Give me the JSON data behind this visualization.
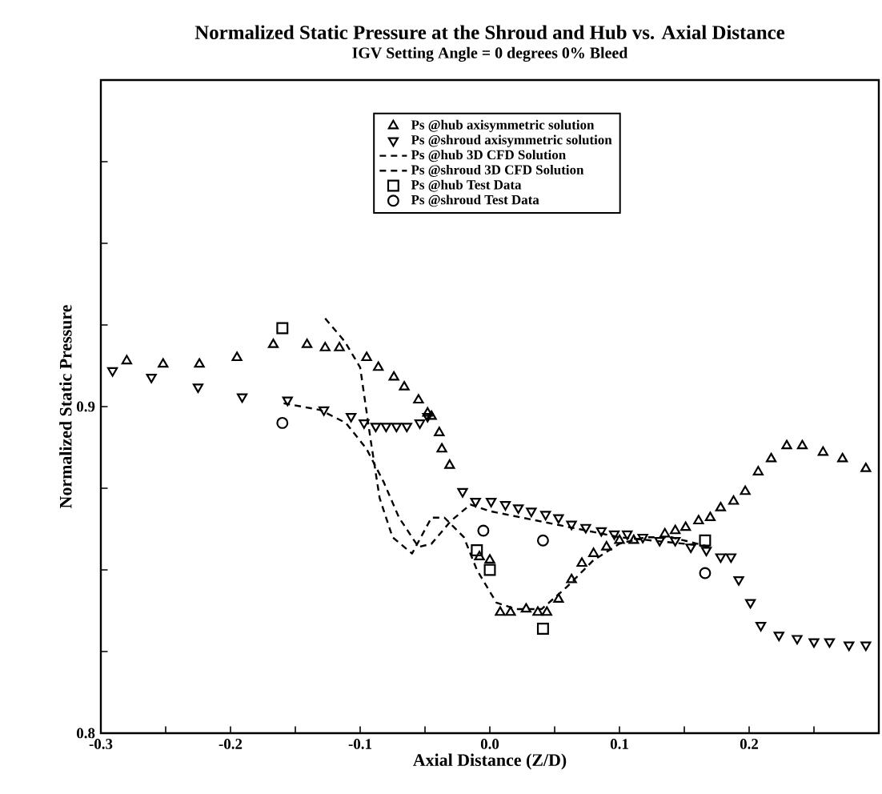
{
  "chart_data": {
    "type": "scatter",
    "title": "Normalized Static Pressure at the Shroud and Hub vs. Axial Distance",
    "subtitle": "IGV Setting Angle = 0 degrees 0% Bleed",
    "xlabel": "Axial Distance (Z/D)",
    "ylabel": "Normalized Static Pressure",
    "xlim": [
      -0.3,
      0.3
    ],
    "ylim": [
      0.8,
      1.0
    ],
    "xticks": [
      -0.3,
      {
        "value": -0.25,
        "label": null
      },
      -0.2,
      {
        "value": -0.15,
        "label": null
      },
      -0.1,
      {
        "value": -0.05,
        "label": null
      },
      {
        "value": 0,
        "label": "0.0"
      },
      {
        "value": 0.05,
        "label": null
      },
      0.1,
      {
        "value": 0.15,
        "label": null
      },
      0.2,
      {
        "value": 0.25,
        "label": null
      }
    ],
    "yticks": [
      0.8,
      {
        "value": 0.825,
        "label": null
      },
      {
        "value": 0.85,
        "label": null
      },
      {
        "value": 0.875,
        "label": null
      },
      0.9,
      {
        "value": 0.925,
        "label": null
      },
      {
        "value": 0.95,
        "label": null
      },
      {
        "value": 0.975,
        "label": null
      }
    ],
    "legend": "top right",
    "series": [
      {
        "name": "Ps @hub axisymmetric solution",
        "marker": "triangle",
        "color": "#000000",
        "x": [
          -0.28,
          -0.252,
          -0.224,
          -0.195,
          -0.167,
          -0.141,
          -0.127,
          -0.116,
          -0.095,
          -0.086,
          -0.074,
          -0.066,
          -0.055,
          -0.048,
          -0.045,
          -0.039,
          -0.037,
          -0.031,
          -0.008,
          0.0,
          0.008,
          0.016,
          0.028,
          0.037,
          0.044,
          0.053,
          0.063,
          0.071,
          0.08,
          0.09,
          0.1,
          0.111,
          0.135,
          0.143,
          0.151,
          0.161,
          0.17,
          0.178,
          0.188,
          0.197,
          0.207,
          0.217,
          0.229,
          0.241,
          0.257,
          0.272,
          0.29
        ],
        "values": [
          0.914,
          0.913,
          0.913,
          0.915,
          0.919,
          0.919,
          0.918,
          0.918,
          0.915,
          0.912,
          0.909,
          0.906,
          0.902,
          0.898,
          0.897,
          0.892,
          0.887,
          0.882,
          0.854,
          0.853,
          0.837,
          0.837,
          0.838,
          0.837,
          0.837,
          0.841,
          0.847,
          0.852,
          0.855,
          0.857,
          0.859,
          0.859,
          0.861,
          0.862,
          0.863,
          0.865,
          0.866,
          0.869,
          0.871,
          0.874,
          0.88,
          0.884,
          0.888,
          0.888,
          0.886,
          0.884,
          0.881
        ]
      },
      {
        "name": "Ps @shroud axisymmetric solution",
        "marker": "triangle-down",
        "color": "#000000",
        "x": [
          -0.291,
          -0.261,
          -0.225,
          -0.191,
          -0.156,
          -0.128,
          -0.107,
          -0.097,
          -0.088,
          -0.08,
          -0.072,
          -0.064,
          -0.054,
          -0.048,
          -0.021,
          -0.011,
          0.001,
          0.012,
          0.022,
          0.032,
          0.043,
          0.053,
          0.063,
          0.074,
          0.086,
          0.096,
          0.106,
          0.118,
          0.131,
          0.143,
          0.155,
          0.167,
          0.178,
          0.186,
          0.192,
          0.201,
          0.209,
          0.223,
          0.237,
          0.25,
          0.262,
          0.277,
          0.29
        ],
        "values": [
          0.911,
          0.909,
          0.906,
          0.903,
          0.902,
          0.899,
          0.897,
          0.895,
          0.894,
          0.894,
          0.894,
          0.894,
          0.895,
          0.897,
          0.874,
          0.871,
          0.871,
          0.87,
          0.869,
          0.868,
          0.867,
          0.866,
          0.864,
          0.863,
          0.862,
          0.861,
          0.861,
          0.86,
          0.859,
          0.859,
          0.857,
          0.856,
          0.854,
          0.854,
          0.847,
          0.84,
          0.833,
          0.83,
          0.829,
          0.828,
          0.828,
          0.827,
          0.827
        ]
      },
      {
        "name": "Ps @hub 3D CFD Solution",
        "type": "line",
        "line_style": "dashed",
        "color": "#000000",
        "x": [
          -0.127,
          -0.112,
          -0.1,
          -0.092,
          -0.085,
          -0.075,
          -0.06,
          -0.045,
          -0.035,
          -0.02,
          -0.01,
          0.005,
          0.02,
          0.04,
          0.06,
          0.08,
          0.1,
          0.12,
          0.14,
          0.16,
          0.17
        ],
        "values": [
          0.927,
          0.92,
          0.912,
          0.89,
          0.872,
          0.86,
          0.855,
          0.866,
          0.866,
          0.86,
          0.85,
          0.84,
          0.838,
          0.838,
          0.845,
          0.853,
          0.858,
          0.86,
          0.86,
          0.858,
          0.857
        ]
      },
      {
        "name": "Ps @shroud 3D CFD Solution",
        "type": "line",
        "line_style": "dashed",
        "color": "#000000",
        "x": [
          -0.159,
          -0.131,
          -0.111,
          -0.095,
          -0.082,
          -0.07,
          -0.055,
          -0.045,
          -0.03,
          -0.015,
          0.0,
          0.05,
          0.1,
          0.15,
          0.17
        ],
        "values": [
          0.901,
          0.899,
          0.895,
          0.887,
          0.877,
          0.866,
          0.857,
          0.858,
          0.865,
          0.87,
          0.868,
          0.864,
          0.86,
          0.858,
          0.857
        ]
      },
      {
        "name": "Ps  @hub Test Data",
        "marker": "square",
        "color": "#000000",
        "x": [
          -0.16,
          -0.01,
          0.0,
          0.041,
          0.166
        ],
        "values": [
          0.924,
          0.856,
          0.85,
          0.832,
          0.859
        ]
      },
      {
        "name": "Ps  @shroud Test Data",
        "marker": "circle",
        "color": "#000000",
        "x": [
          -0.16,
          -0.005,
          0.041,
          0.166
        ],
        "values": [
          0.895,
          0.862,
          0.859,
          0.849
        ]
      }
    ]
  }
}
